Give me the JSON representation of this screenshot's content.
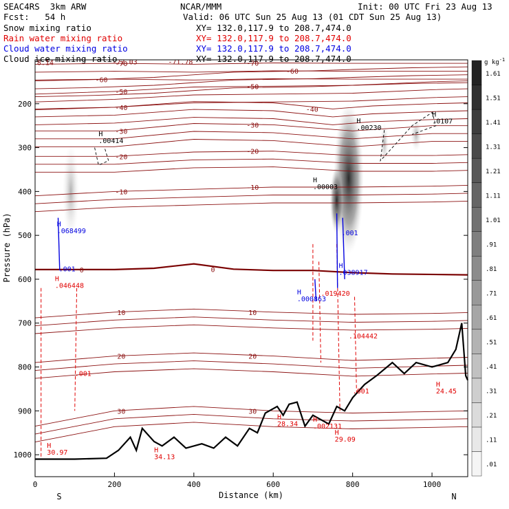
{
  "header": {
    "model": "SEAC4RS  3km ARW",
    "org": "NCAR/MMM",
    "init": "Init: 00 UTC Fri 23 Aug 13",
    "fcst": "Fcst:   54 h",
    "valid": "Valid: 06 UTC Sun 25 Aug 13 (01 CDT Sun 25 Aug 13)",
    "fields": [
      {
        "label": "Snow mixing ratio",
        "xy": "XY= 132.0,117.9 to 208.7,474.0",
        "color": "#000000"
      },
      {
        "label": "Rain water mixing ratio",
        "xy": "XY= 132.0,117.9 to 208.7,474.0",
        "color": "#e00000"
      },
      {
        "label": "Cloud water mixing ratio",
        "xy": "XY= 132.0,117.9 to 208.7,474.0",
        "color": "#0000e0"
      },
      {
        "label": "Cloud ice mixing ratio",
        "xy": "XY= 132.0,117.9 to 208.7,474.0",
        "color": "#000000"
      }
    ]
  },
  "colors": {
    "temperature": "#8b1010",
    "freezing": "#7a0000",
    "rain": "#e00000",
    "cloud_water": "#0000e0",
    "terrain": "#000000"
  },
  "chart_data": {
    "type": "cross-section",
    "xlabel": "Distance (km)",
    "ylabel": "Pressure (hPa)",
    "xlim": [
      0,
      1090
    ],
    "ylim": [
      1050,
      100
    ],
    "x_ticks": [
      0,
      200,
      400,
      600,
      800,
      1000
    ],
    "y_ticks": [
      200,
      300,
      400,
      500,
      600,
      700,
      800,
      900,
      1000
    ],
    "x_end_labels": {
      "left": "S",
      "right": "N"
    },
    "colorbar": {
      "unit": "g kg",
      "unit_exp": "-1",
      "levels": [
        ".01",
        ".11",
        ".21",
        ".31",
        ".41",
        ".51",
        ".61",
        ".71",
        ".81",
        ".91",
        "1.01",
        "1.11",
        "1.21",
        "1.31",
        "1.41",
        "1.51",
        "1.61"
      ]
    },
    "temperature_isotherms": [
      {
        "label": "-70",
        "levels": [
          [
            0,
            110
          ],
          [
            200,
            108
          ],
          [
            400,
            110
          ],
          [
            600,
            107
          ],
          [
            800,
            108
          ],
          [
            1090,
            108
          ]
        ]
      },
      {
        "label": "-60",
        "levels": [
          [
            0,
            148
          ],
          [
            150,
            145
          ],
          [
            300,
            140
          ],
          [
            500,
            128
          ],
          [
            700,
            125
          ],
          [
            800,
            122
          ],
          [
            950,
            118
          ],
          [
            1090,
            116
          ]
        ]
      },
      {
        "label": "-50",
        "levels": [
          [
            0,
            178
          ],
          [
            200,
            172
          ],
          [
            400,
            162
          ],
          [
            600,
            160
          ],
          [
            800,
            158
          ],
          [
            1000,
            150
          ],
          [
            1090,
            148
          ]
        ]
      },
      {
        "label": "-40",
        "levels": [
          [
            0,
            212
          ],
          [
            200,
            208
          ],
          [
            400,
            195
          ],
          [
            600,
            198
          ],
          [
            750,
            212
          ],
          [
            850,
            205
          ],
          [
            1000,
            200
          ],
          [
            1090,
            198
          ]
        ]
      },
      {
        "label": "-30",
        "levels": [
          [
            0,
            262
          ],
          [
            200,
            262
          ],
          [
            400,
            245
          ],
          [
            600,
            248
          ],
          [
            800,
            262
          ],
          [
            1000,
            250
          ],
          [
            1090,
            250
          ]
        ]
      },
      {
        "label": "-20",
        "levels": [
          [
            0,
            320
          ],
          [
            200,
            320
          ],
          [
            400,
            310
          ],
          [
            600,
            308
          ],
          [
            800,
            318
          ],
          [
            1000,
            318
          ],
          [
            1090,
            316
          ]
        ]
      },
      {
        "label": "-10",
        "levels": [
          [
            0,
            410
          ],
          [
            200,
            400
          ],
          [
            400,
            395
          ],
          [
            600,
            390
          ],
          [
            800,
            390
          ],
          [
            1000,
            388
          ],
          [
            1090,
            386
          ]
        ]
      },
      {
        "label": "0",
        "levels": [
          [
            0,
            578
          ],
          [
            100,
            578
          ],
          [
            200,
            578
          ],
          [
            300,
            575
          ],
          [
            400,
            565
          ],
          [
            500,
            577
          ],
          [
            600,
            580
          ],
          [
            700,
            580
          ],
          [
            800,
            585
          ],
          [
            900,
            588
          ],
          [
            1090,
            590
          ]
        ]
      },
      {
        "label": "10",
        "levels": [
          [
            0,
            688
          ],
          [
            200,
            675
          ],
          [
            400,
            668
          ],
          [
            600,
            675
          ],
          [
            800,
            680
          ],
          [
            1000,
            678
          ],
          [
            1090,
            676
          ]
        ]
      },
      {
        "label": "20",
        "levels": [
          [
            0,
            790
          ],
          [
            200,
            775
          ],
          [
            400,
            768
          ],
          [
            600,
            775
          ],
          [
            800,
            785
          ],
          [
            1000,
            780
          ],
          [
            1090,
            778
          ]
        ]
      },
      {
        "label": "30",
        "levels": [
          [
            0,
            935
          ],
          [
            200,
            900
          ],
          [
            400,
            890
          ],
          [
            600,
            900
          ],
          [
            800,
            905
          ],
          [
            1090,
            900
          ]
        ]
      }
    ],
    "extrema_labels": [
      {
        "text": "H",
        "value": ".00414",
        "x": 160,
        "p": 290,
        "color": "#000000"
      },
      {
        "text": "H",
        "value": ".00003",
        "x": 700,
        "p": 395,
        "color": "#000000"
      },
      {
        "text": "H",
        "value": ".00230",
        "x": 810,
        "p": 260,
        "color": "#000000"
      },
      {
        "text": "H",
        "value": ".0107",
        "x": 1000,
        "p": 245,
        "color": "#000000"
      },
      {
        "text": "H",
        "value": ".068499",
        "x": 55,
        "p": 495,
        "color": "#0000e0"
      },
      {
        "text": "",
        "value": ".001",
        "x": 60,
        "p": 582,
        "color": "#0000e0"
      },
      {
        "text": "H",
        "value": ".046448",
        "x": 50,
        "p": 620,
        "color": "#e00000"
      },
      {
        "text": "",
        "value": ".001",
        "x": 772,
        "p": 500,
        "color": "#0000e0"
      },
      {
        "text": "H",
        "value": ".038917",
        "x": 765,
        "p": 590,
        "color": "#0000e0"
      },
      {
        "text": "H",
        "value": ".000863",
        "x": 660,
        "p": 650,
        "color": "#0000e0"
      },
      {
        "text": "",
        "value": ".019420",
        "x": 720,
        "p": 638,
        "color": "#e00000"
      },
      {
        "text": "",
        "value": ".104442",
        "x": 790,
        "p": 735,
        "color": "#e00000"
      },
      {
        "text": "",
        "value": ".001",
        "x": 100,
        "p": 820,
        "color": "#e00000"
      },
      {
        "text": "",
        "value": ".001",
        "x": 800,
        "p": 860,
        "color": "#e00000"
      },
      {
        "text": "H",
        "value": "30.97",
        "x": 30,
        "p": 1000,
        "color": "#e00000"
      },
      {
        "text": "H",
        "value": "34.13",
        "x": 300,
        "p": 1010,
        "color": "#e00000"
      },
      {
        "text": "H",
        "value": "28.34",
        "x": 610,
        "p": 935,
        "color": "#e00000"
      },
      {
        "text": "H",
        "value": ".002131",
        "x": 700,
        "p": 940,
        "color": "#e00000"
      },
      {
        "text": "H",
        "value": "29.09",
        "x": 755,
        "p": 970,
        "color": "#e00000"
      },
      {
        "text": "H",
        "value": "24.45",
        "x": 1010,
        "p": 860,
        "color": "#e00000"
      }
    ],
    "corner_labels": [
      {
        "value": "8.14",
        "x": 5,
        "p": 112,
        "color": "#8b1010"
      },
      {
        "value": "-72.03",
        "x": 195,
        "p": 110,
        "color": "#8b1010"
      },
      {
        "value": "-71.78",
        "x": 335,
        "p": 110,
        "color": "#8b1010"
      }
    ],
    "terrain_profile": [
      [
        0,
        1010
      ],
      [
        100,
        1010
      ],
      [
        180,
        1008
      ],
      [
        210,
        990
      ],
      [
        240,
        960
      ],
      [
        255,
        990
      ],
      [
        270,
        940
      ],
      [
        300,
        970
      ],
      [
        320,
        980
      ],
      [
        350,
        960
      ],
      [
        380,
        985
      ],
      [
        420,
        975
      ],
      [
        450,
        985
      ],
      [
        480,
        960
      ],
      [
        510,
        980
      ],
      [
        540,
        940
      ],
      [
        560,
        950
      ],
      [
        580,
        905
      ],
      [
        610,
        890
      ],
      [
        625,
        910
      ],
      [
        640,
        885
      ],
      [
        660,
        880
      ],
      [
        680,
        935
      ],
      [
        700,
        910
      ],
      [
        740,
        930
      ],
      [
        760,
        890
      ],
      [
        780,
        900
      ],
      [
        800,
        870
      ],
      [
        830,
        840
      ],
      [
        860,
        820
      ],
      [
        900,
        790
      ],
      [
        930,
        815
      ],
      [
        960,
        790
      ],
      [
        1000,
        800
      ],
      [
        1040,
        790
      ],
      [
        1060,
        760
      ],
      [
        1075,
        700
      ],
      [
        1085,
        820
      ],
      [
        1090,
        830
      ]
    ]
  }
}
